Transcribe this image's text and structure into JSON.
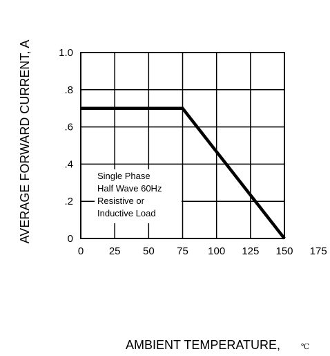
{
  "chart_data": {
    "type": "line",
    "xlabel": "AMBIENT TEMPERATURE,",
    "xunit": "℃",
    "ylabel": "AVERAGE  FORWARD CURRENT, A",
    "xlim": [
      0,
      150
    ],
    "ylim": [
      0,
      1.0
    ],
    "x_ticks": [
      0,
      25,
      50,
      75,
      100,
      125,
      150,
      175
    ],
    "x_tick_labels": [
      "0",
      "25",
      "50",
      "75",
      "100",
      "125",
      "150",
      "175"
    ],
    "y_ticks": [
      0,
      0.2,
      0.4,
      0.6,
      0.8,
      1.0
    ],
    "y_tick_labels": [
      "0",
      ".2",
      ".4",
      ".6",
      ".8",
      "1.0"
    ],
    "grid": true,
    "series": [
      {
        "x": [
          0,
          75,
          150
        ],
        "y": [
          0.7,
          0.7,
          0
        ]
      }
    ],
    "annotation": [
      "Single Phase",
      "Half Wave 60Hz",
      "Resistive or",
      "Inductive Load"
    ]
  }
}
